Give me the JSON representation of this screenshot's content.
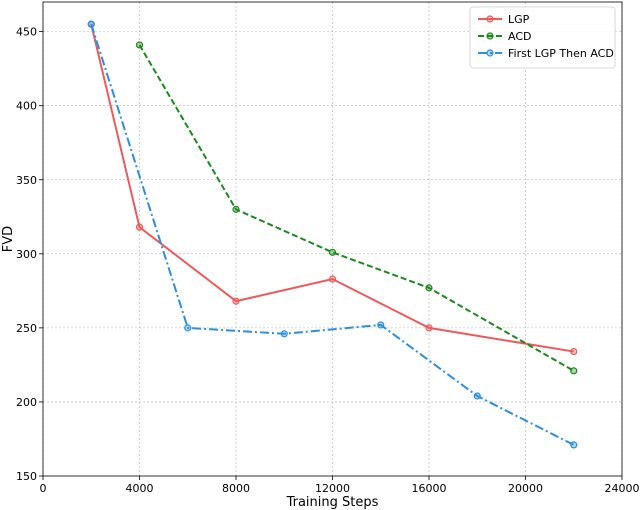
{
  "chart_data": {
    "type": "line",
    "xlabel": "Training Steps",
    "ylabel": "FVD",
    "xlim": [
      0,
      24000
    ],
    "ylim": [
      150,
      470
    ],
    "xticks": [
      0,
      4000,
      8000,
      12000,
      16000,
      20000,
      24000
    ],
    "yticks": [
      150,
      200,
      250,
      300,
      350,
      400,
      450
    ],
    "grid": true,
    "legend_position": "top-right",
    "series": [
      {
        "name": "LGP",
        "color": "#ee5a5a",
        "style": "solid",
        "x": [
          2000,
          4000,
          8000,
          12000,
          16000,
          22000
        ],
        "y": [
          455,
          318,
          268,
          283,
          250,
          234
        ]
      },
      {
        "name": "ACD",
        "color": "#1a8a1a",
        "style": "dashed",
        "x": [
          4000,
          8000,
          12000,
          16000,
          22000
        ],
        "y": [
          441,
          330,
          301,
          277,
          221
        ]
      },
      {
        "name": "First LGP Then ACD",
        "color": "#2a8fe0",
        "style": "dashdot",
        "x": [
          2000,
          6000,
          10000,
          14000,
          18000,
          22000
        ],
        "y": [
          455,
          250,
          246,
          252,
          204,
          171
        ]
      }
    ]
  }
}
